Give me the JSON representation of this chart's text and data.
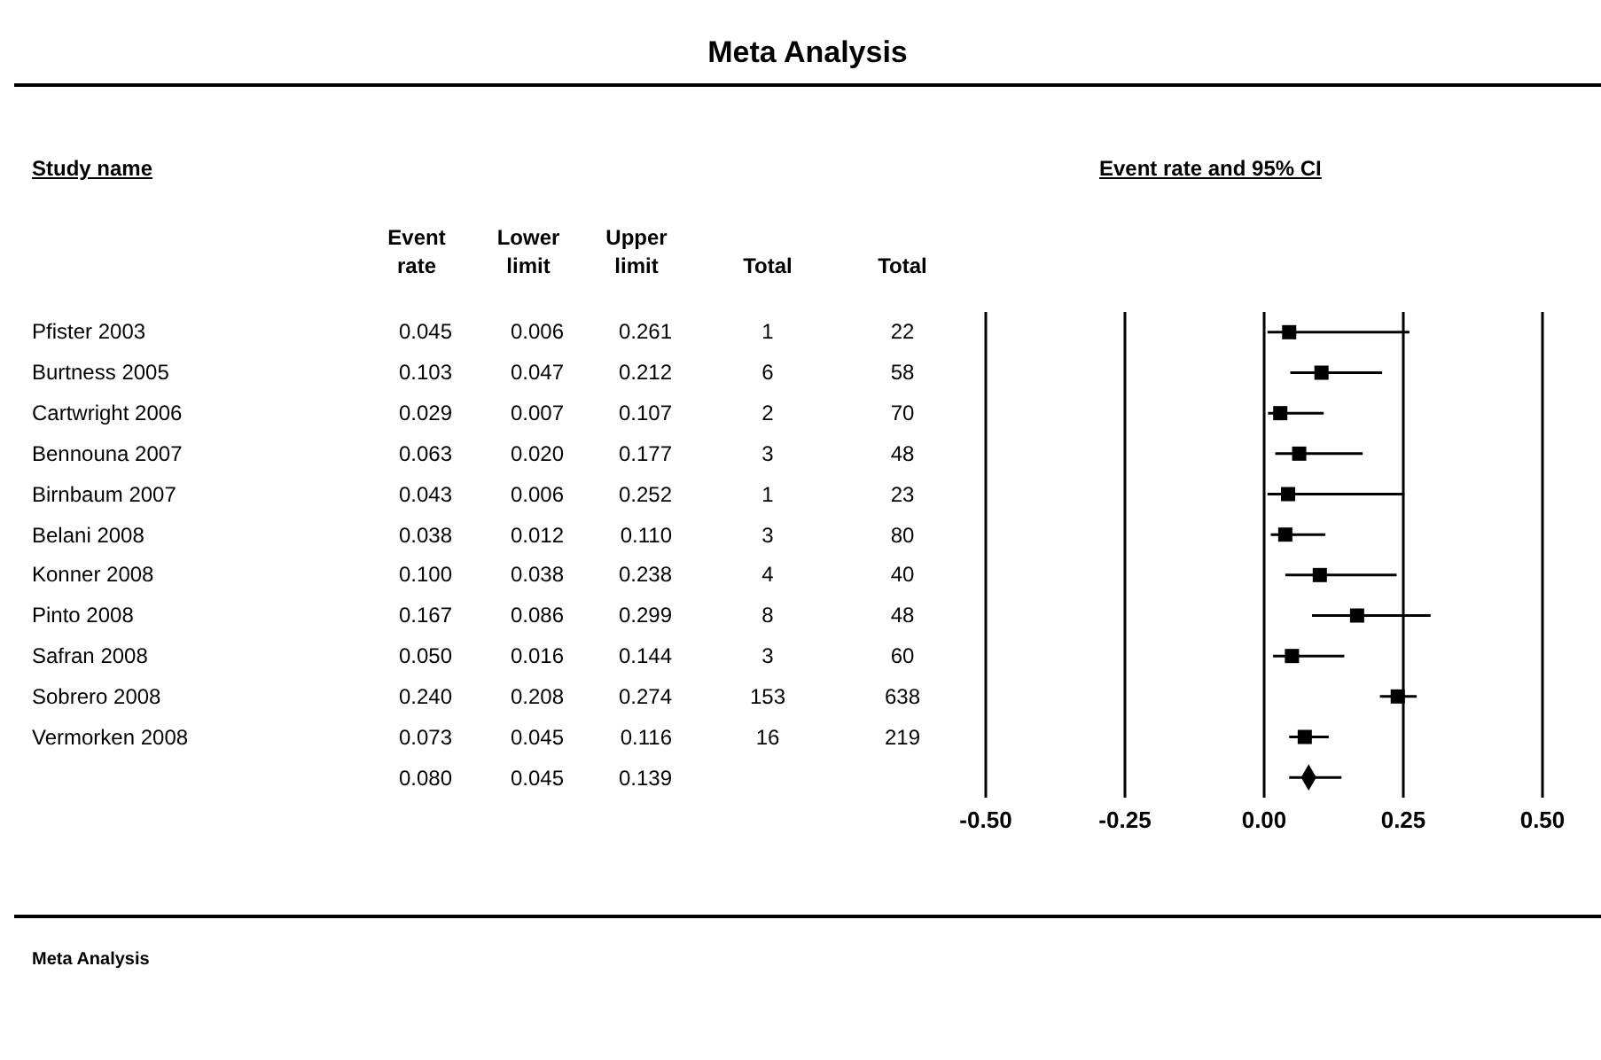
{
  "chart_data": [
    {
      "type": "other",
      "title": "Meta Analysis",
      "annotations": [
        "Study name",
        "Event rate",
        "Lower limit",
        "Upper limit",
        "Total",
        "Total",
        "Pfister 2003",
        "0.045",
        "0.006",
        "0.261",
        "1",
        "22",
        "Burtness 2005",
        "0.103",
        "0.047",
        "0.212",
        "6",
        "58",
        "Cartwright 2006",
        "0.029",
        "0.007",
        "0.107",
        "2",
        "70",
        "Bennouna 2007",
        "0.063",
        "0.020",
        "0.177",
        "3",
        "48",
        "Birnbaum 2007",
        "0.043",
        "0.006",
        "0.252",
        "1",
        "23",
        "Belani 2008",
        "0.038",
        "0.012",
        "0.110",
        "3",
        "80",
        "Konner 2008",
        "0.100",
        "0.038",
        "0.238",
        "4",
        "40",
        "Pinto 2008",
        "0.167",
        "0.086",
        "0.299",
        "8",
        "48",
        "Safran 2008",
        "0.050",
        "0.016",
        "0.144",
        "3",
        "60",
        "Sobrero 2008",
        "0.240",
        "0.208",
        "0.274",
        "153",
        "638",
        "Vermorken 2008",
        "0.073",
        "0.045",
        "0.116",
        "16",
        "219",
        "0.080",
        "0.045",
        "0.139"
      ]
    },
    {
      "type": "scatter",
      "orientation": "horizontal",
      "categories": [
        null,
        null,
        null,
        null,
        null,
        null,
        null,
        null,
        null,
        null,
        null,
        null
      ],
      "series": [
        {
          "color": "#000000",
          "marker": "square",
          "values": [
            0.045,
            0.103,
            0.029,
            0.063,
            0.043,
            0.038,
            0.1,
            0.167,
            0.05,
            0.24,
            0.073,
            null
          ],
          "errors": [
            [
              0.006,
              0.261
            ],
            [
              0.047,
              0.212
            ],
            [
              0.007,
              0.107
            ],
            [
              0.02,
              0.177
            ],
            [
              0.006,
              0.252
            ],
            [
              0.012,
              0.11
            ],
            [
              0.038,
              0.238
            ],
            [
              0.086,
              0.299
            ],
            [
              0.016,
              0.144
            ],
            [
              0.208,
              0.274
            ],
            [
              0.045,
              0.116
            ],
            null
          ]
        },
        {
          "color": "#000000",
          "marker": "diamond",
          "values": [
            null,
            null,
            null,
            null,
            null,
            null,
            null,
            null,
            null,
            null,
            null,
            0.08
          ],
          "errors": [
            null,
            null,
            null,
            null,
            null,
            null,
            null,
            null,
            null,
            null,
            null,
            [
              0.045,
              0.139
            ]
          ]
        }
      ],
      "xlim": [
        -0.5,
        0.5
      ],
      "xticks": [
        {
          "value": -0.5,
          "label": "-0.50"
        },
        {
          "value": -0.25,
          "label": "-0.25"
        },
        {
          "value": 0,
          "label": "0.00"
        },
        {
          "value": 0.25,
          "label": "0.25"
        },
        {
          "value": 0.5,
          "label": "0.50"
        }
      ],
      "grid": "x",
      "legend": false,
      "annotations": [
        "Event rate and 95% CI",
        "Meta Analysis"
      ]
    }
  ]
}
